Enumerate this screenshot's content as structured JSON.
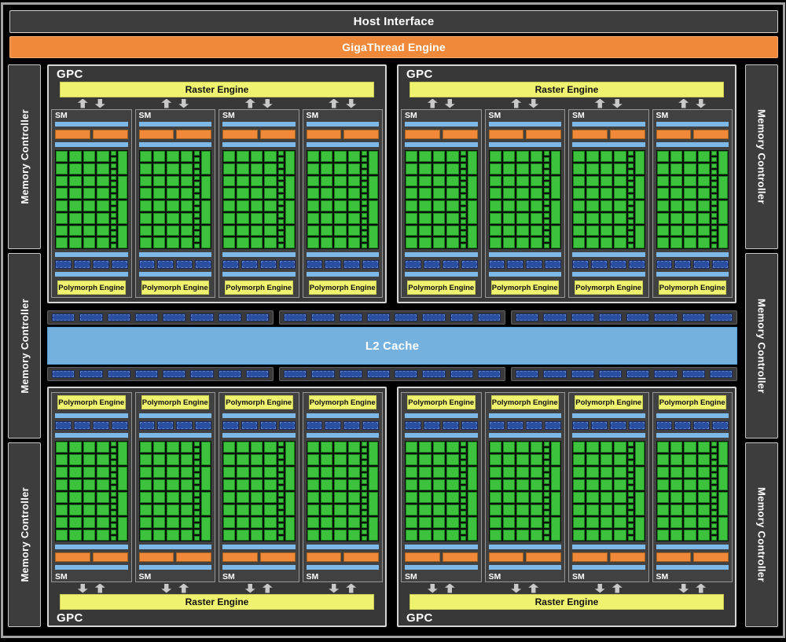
{
  "labels": {
    "host_interface": "Host Interface",
    "gigathread_engine": "GigaThread Engine",
    "memory_controller": "Memory Controller",
    "gpc": "GPC",
    "raster_engine": "Raster Engine",
    "sm": "SM",
    "polymorph_engine": "Polymorph Engine",
    "l2_cache": "L2 Cache"
  },
  "colors": {
    "panel_dark": "#3d3d3d",
    "orange": "#f08a3a",
    "yellow": "#eef26e",
    "light_blue": "#7db9e8",
    "l2_blue": "#74b1df",
    "navy": "#2b4fa0",
    "green": "#3cc23c",
    "arrow_gray": "#c9c9c9"
  },
  "structure": {
    "gpc_count": 4,
    "sms_per_gpc": 4,
    "memory_controllers_per_side": 3,
    "sm": {
      "core_grid": {
        "cols": 4,
        "rows": 8
      },
      "small_cells": 16,
      "tall_cells": 4,
      "orange_bars": 2,
      "navy_blocks": 4,
      "blue_bars": 4
    },
    "l2_strips": {
      "rows": 2,
      "strips_per_row": 3,
      "blocks_per_strip": 8
    }
  }
}
